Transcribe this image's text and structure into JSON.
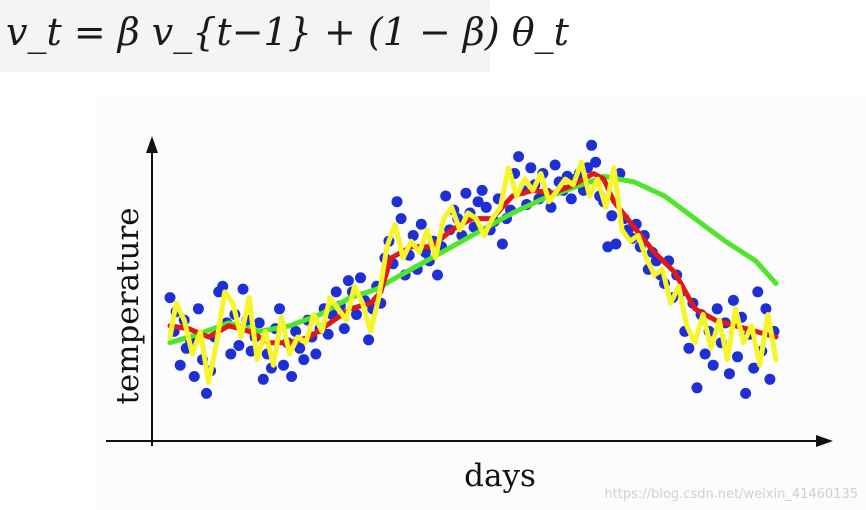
{
  "formula": {
    "text": "v_t = β v_{t−1} + (1 − β) θ_t"
  },
  "watermark": "https://blog.csdn.net/weixin_41460135",
  "chart_data": {
    "type": "scatter",
    "xlabel": "days",
    "ylabel": "temperature",
    "xlim": [
      0,
      365
    ],
    "ylim": [
      0,
      100
    ],
    "grid": false,
    "legend": "none",
    "colors": {
      "points": "#1f2fd6",
      "beta_0_98": "#4ee62a",
      "beta_0_9": "#e01818",
      "beta_0_5": "#f5f52a"
    },
    "points": [
      [
        1,
        42
      ],
      [
        3,
        30
      ],
      [
        4,
        37
      ],
      [
        6,
        18
      ],
      [
        8,
        34
      ],
      [
        9,
        24
      ],
      [
        11,
        27
      ],
      [
        13,
        14
      ],
      [
        15,
        38
      ],
      [
        17,
        20
      ],
      [
        19,
        8
      ],
      [
        21,
        16
      ],
      [
        23,
        28
      ],
      [
        25,
        44
      ],
      [
        27,
        46
      ],
      [
        29,
        33
      ],
      [
        31,
        22
      ],
      [
        33,
        36
      ],
      [
        35,
        25
      ],
      [
        37,
        45
      ],
      [
        39,
        34
      ],
      [
        41,
        23
      ],
      [
        43,
        28
      ],
      [
        45,
        33
      ],
      [
        47,
        13
      ],
      [
        49,
        22
      ],
      [
        51,
        17
      ],
      [
        53,
        31
      ],
      [
        55,
        38
      ],
      [
        57,
        18
      ],
      [
        59,
        26
      ],
      [
        61,
        14
      ],
      [
        63,
        30
      ],
      [
        65,
        24
      ],
      [
        67,
        20
      ],
      [
        69,
        34
      ],
      [
        71,
        28
      ],
      [
        73,
        22
      ],
      [
        75,
        31
      ],
      [
        77,
        38
      ],
      [
        79,
        29
      ],
      [
        81,
        36
      ],
      [
        83,
        44
      ],
      [
        85,
        39
      ],
      [
        87,
        31
      ],
      [
        89,
        48
      ],
      [
        91,
        44
      ],
      [
        93,
        36
      ],
      [
        95,
        49
      ],
      [
        97,
        41
      ],
      [
        99,
        27
      ],
      [
        101,
        38
      ],
      [
        103,
        46
      ],
      [
        105,
        40
      ],
      [
        107,
        56
      ],
      [
        109,
        62
      ],
      [
        111,
        54
      ],
      [
        113,
        76
      ],
      [
        115,
        70
      ],
      [
        117,
        50
      ],
      [
        119,
        57
      ],
      [
        121,
        64
      ],
      [
        123,
        52
      ],
      [
        125,
        68
      ],
      [
        127,
        58
      ],
      [
        129,
        55
      ],
      [
        131,
        62
      ],
      [
        133,
        50
      ],
      [
        135,
        60
      ],
      [
        137,
        78
      ],
      [
        139,
        66
      ],
      [
        141,
        73
      ],
      [
        143,
        70
      ],
      [
        145,
        64
      ],
      [
        147,
        79
      ],
      [
        149,
        72
      ],
      [
        151,
        67
      ],
      [
        153,
        76
      ],
      [
        155,
        80
      ],
      [
        157,
        74
      ],
      [
        159,
        66
      ],
      [
        161,
        69
      ],
      [
        163,
        77
      ],
      [
        165,
        61
      ],
      [
        167,
        70
      ],
      [
        169,
        73
      ],
      [
        171,
        86
      ],
      [
        173,
        92
      ],
      [
        175,
        80
      ],
      [
        177,
        75
      ],
      [
        179,
        88
      ],
      [
        181,
        82
      ],
      [
        183,
        77
      ],
      [
        185,
        86
      ],
      [
        187,
        79
      ],
      [
        189,
        74
      ],
      [
        191,
        89
      ],
      [
        193,
        83
      ],
      [
        195,
        80
      ],
      [
        197,
        85
      ],
      [
        199,
        77
      ],
      [
        201,
        84
      ],
      [
        203,
        86
      ],
      [
        205,
        80
      ],
      [
        207,
        88
      ],
      [
        209,
        96
      ],
      [
        211,
        90
      ],
      [
        213,
        78
      ],
      [
        215,
        76
      ],
      [
        217,
        60
      ],
      [
        219,
        71
      ],
      [
        221,
        61
      ],
      [
        223,
        86
      ],
      [
        225,
        70
      ],
      [
        227,
        66
      ],
      [
        229,
        63
      ],
      [
        231,
        68
      ],
      [
        233,
        60
      ],
      [
        235,
        64
      ],
      [
        237,
        52
      ],
      [
        239,
        58
      ],
      [
        241,
        55
      ],
      [
        243,
        50
      ],
      [
        245,
        47
      ],
      [
        247,
        55
      ],
      [
        249,
        42
      ],
      [
        251,
        50
      ],
      [
        253,
        44
      ],
      [
        255,
        30
      ],
      [
        257,
        24
      ],
      [
        259,
        40
      ],
      [
        261,
        10
      ],
      [
        263,
        36
      ],
      [
        265,
        22
      ],
      [
        267,
        30
      ],
      [
        269,
        18
      ],
      [
        271,
        38
      ],
      [
        273,
        26
      ],
      [
        275,
        33
      ],
      [
        277,
        15
      ],
      [
        279,
        41
      ],
      [
        281,
        21
      ],
      [
        283,
        35
      ],
      [
        285,
        8
      ],
      [
        287,
        29
      ],
      [
        289,
        17
      ],
      [
        291,
        44
      ],
      [
        293,
        23
      ],
      [
        295,
        38
      ],
      [
        297,
        13
      ],
      [
        299,
        30
      ]
    ],
    "series": [
      {
        "key": "beta_0_98",
        "x": [
          1,
          15,
          30,
          45,
          60,
          75,
          90,
          103,
          110,
          125,
          140,
          155,
          170,
          185,
          200,
          212,
          215,
          230,
          245,
          260,
          275,
          290,
          300
        ],
        "y": [
          26,
          29,
          33,
          30,
          32,
          36,
          42,
          45,
          48,
          54,
          60,
          66,
          72,
          77,
          81,
          84,
          85,
          83,
          78,
          70,
          62,
          55,
          47
        ]
      },
      {
        "key": "beta_0_9",
        "x": [
          1,
          10,
          20,
          30,
          40,
          50,
          60,
          70,
          80,
          90,
          100,
          105,
          110,
          120,
          130,
          140,
          150,
          160,
          170,
          180,
          190,
          200,
          210,
          215,
          220,
          230,
          240,
          250,
          260,
          270,
          280,
          290,
          300
        ],
        "y": [
          32,
          31,
          28,
          32,
          30,
          26,
          26,
          28,
          33,
          38,
          40,
          44,
          56,
          60,
          60,
          66,
          70,
          70,
          78,
          80,
          79,
          82,
          86,
          84,
          76,
          67,
          58,
          51,
          38,
          34,
          32,
          30,
          28
        ]
      },
      {
        "key": "beta_0_5",
        "x": [
          1,
          4,
          8,
          12,
          16,
          20,
          24,
          28,
          32,
          36,
          40,
          44,
          48,
          52,
          56,
          60,
          64,
          68,
          72,
          76,
          80,
          84,
          88,
          92,
          96,
          100,
          104,
          108,
          112,
          116,
          120,
          124,
          128,
          132,
          136,
          140,
          144,
          148,
          152,
          156,
          160,
          164,
          168,
          172,
          176,
          180,
          184,
          188,
          192,
          196,
          200,
          204,
          208,
          212,
          216,
          220,
          224,
          228,
          232,
          236,
          240,
          244,
          248,
          252,
          256,
          260,
          264,
          268,
          272,
          276,
          280,
          284,
          288,
          292,
          296,
          300
        ],
        "y": [
          28,
          40,
          34,
          22,
          30,
          12,
          26,
          44,
          40,
          28,
          42,
          20,
          30,
          18,
          35,
          22,
          28,
          26,
          36,
          30,
          42,
          38,
          34,
          46,
          40,
          30,
          42,
          60,
          68,
          56,
          62,
          58,
          66,
          56,
          70,
          74,
          66,
          72,
          70,
          64,
          70,
          74,
          88,
          78,
          84,
          80,
          86,
          76,
          80,
          84,
          82,
          90,
          78,
          84,
          74,
          88,
          66,
          62,
          64,
          56,
          50,
          52,
          40,
          46,
          32,
          26,
          36,
          24,
          34,
          20,
          38,
          26,
          32,
          18,
          36,
          20
        ]
      }
    ]
  }
}
